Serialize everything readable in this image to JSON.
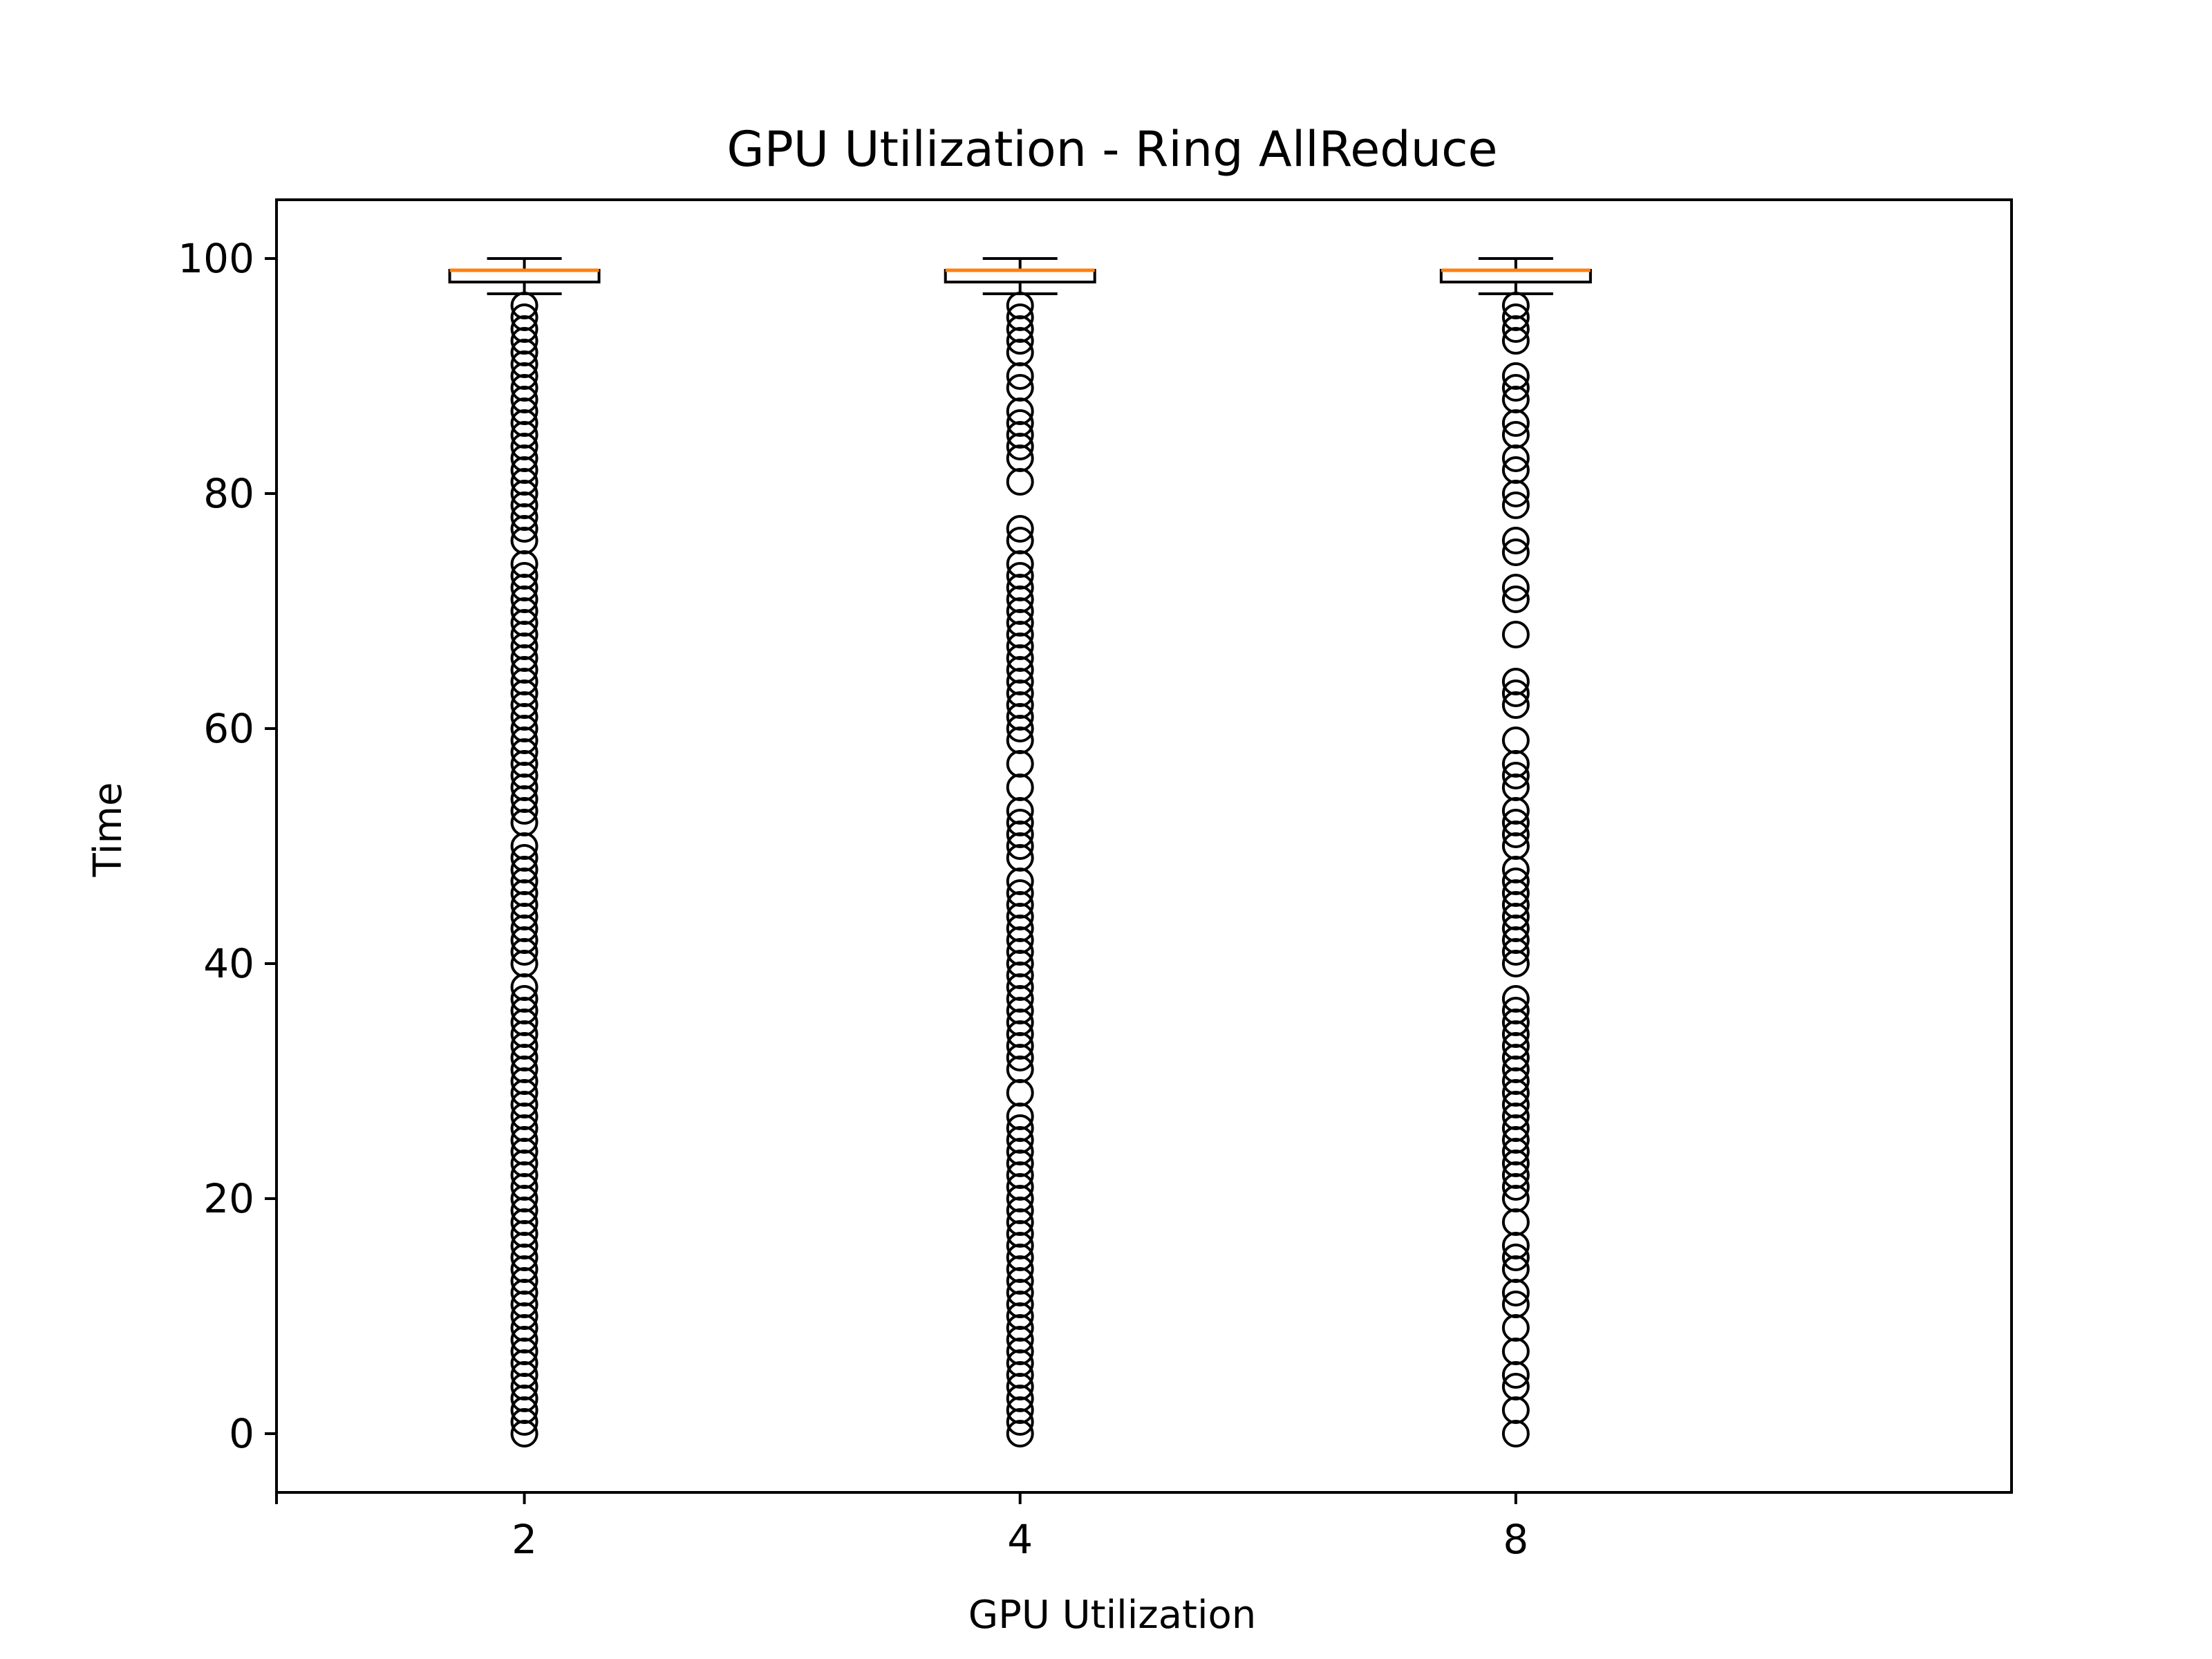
{
  "chart_data": {
    "type": "box",
    "title": "GPU Utilization - Ring AllReduce",
    "xlabel": "GPU Utilization",
    "ylabel": "Time",
    "categories": [
      "2",
      "4",
      "8"
    ],
    "ylim": [
      -5,
      105
    ],
    "yticks": [
      0,
      20,
      40,
      60,
      80,
      100
    ],
    "grid": false,
    "colors": {
      "box": "#000000",
      "median": "#ff7f0e",
      "flier": "#000000"
    },
    "boxes": [
      {
        "category": "2",
        "whisker_low": 97,
        "q1": 98,
        "median": 99,
        "q3": 99,
        "whisker_high": 100,
        "outliers": [
          0,
          1,
          2,
          3,
          4,
          5,
          6,
          7,
          8,
          9,
          10,
          11,
          12,
          13,
          14,
          15,
          16,
          17,
          18,
          19,
          20,
          21,
          22,
          23,
          24,
          25,
          26,
          27,
          28,
          29,
          30,
          31,
          32,
          33,
          34,
          35,
          36,
          37,
          38,
          40,
          41,
          42,
          43,
          44,
          45,
          46,
          47,
          48,
          49,
          50,
          52,
          53,
          54,
          55,
          56,
          57,
          58,
          59,
          60,
          61,
          62,
          63,
          64,
          65,
          66,
          67,
          68,
          69,
          70,
          71,
          72,
          73,
          74,
          76,
          77,
          78,
          79,
          80,
          81,
          82,
          83,
          84,
          85,
          86,
          87,
          88,
          89,
          90,
          91,
          92,
          93,
          94,
          95,
          96
        ]
      },
      {
        "category": "4",
        "whisker_low": 97,
        "q1": 98,
        "median": 99,
        "q3": 99,
        "whisker_high": 100,
        "outliers": [
          0,
          1,
          2,
          3,
          4,
          5,
          6,
          7,
          8,
          9,
          10,
          11,
          12,
          13,
          14,
          15,
          16,
          17,
          18,
          19,
          20,
          21,
          22,
          23,
          24,
          25,
          26,
          27,
          29,
          31,
          32,
          33,
          34,
          35,
          36,
          37,
          38,
          39,
          40,
          41,
          42,
          43,
          44,
          45,
          46,
          47,
          49,
          50,
          51,
          52,
          53,
          55,
          57,
          59,
          60,
          61,
          62,
          63,
          64,
          65,
          66,
          67,
          68,
          69,
          70,
          71,
          72,
          73,
          74,
          76,
          77,
          81,
          83,
          84,
          85,
          86,
          87,
          89,
          90,
          92,
          93,
          94,
          95,
          96
        ]
      },
      {
        "category": "8",
        "whisker_low": 97,
        "q1": 98,
        "median": 99,
        "q3": 99,
        "whisker_high": 100,
        "outliers": [
          0,
          2,
          4,
          5,
          7,
          9,
          11,
          12,
          14,
          15,
          16,
          18,
          20,
          21,
          22,
          23,
          24,
          25,
          26,
          27,
          28,
          29,
          30,
          31,
          32,
          33,
          34,
          35,
          36,
          37,
          40,
          41,
          42,
          43,
          44,
          45,
          46,
          47,
          48,
          50,
          51,
          52,
          53,
          55,
          56,
          57,
          59,
          62,
          63,
          64,
          68,
          71,
          72,
          75,
          76,
          79,
          80,
          82,
          83,
          85,
          86,
          88,
          89,
          90,
          93,
          94,
          95,
          96
        ]
      }
    ]
  }
}
